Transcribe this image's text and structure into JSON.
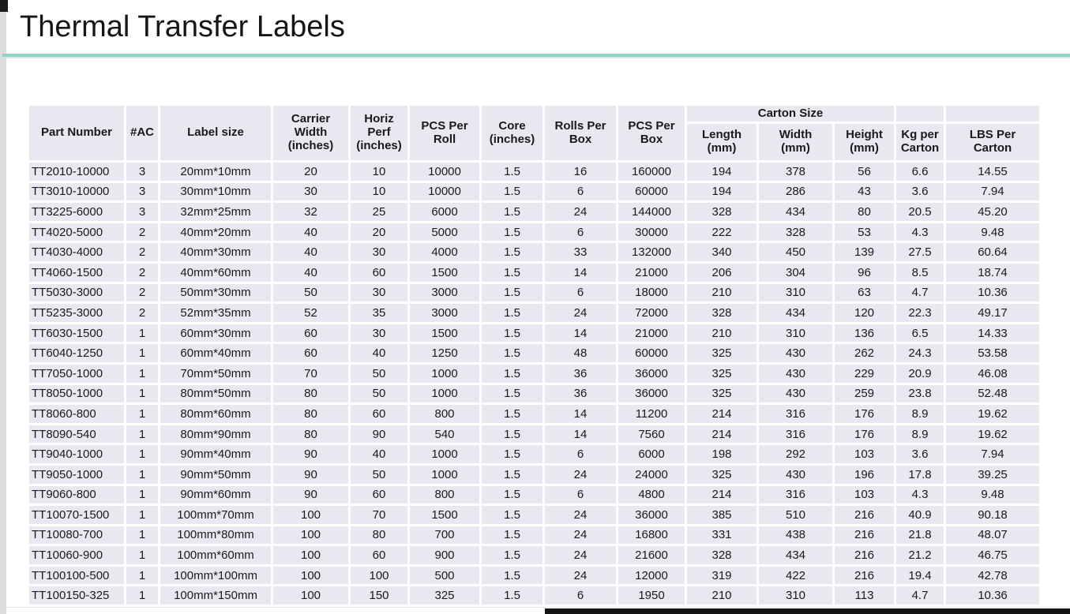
{
  "page": {
    "title": "Thermal Transfer Labels"
  },
  "accent": {
    "divider_color": "#92d1c4",
    "cell_bg": "#e8e8f1",
    "text_color": "#1a1a1a"
  },
  "table": {
    "main_headers": [
      "Part Number",
      "#AC",
      "Label size",
      "Carrier\nWidth\n(inches)",
      "Horiz\nPerf\n(inches)",
      "PCS Per\nRoll",
      "Core\n(inches)",
      "Rolls Per\nBox",
      "PCS Per\nBox"
    ],
    "carton_group_header": "Carton Size",
    "carton_subheaders": [
      "Length\n(mm)",
      "Width\n(mm)",
      "Height\n(mm)"
    ],
    "tail_headers": [
      "Kg per\nCarton",
      "LBS Per\nCarton"
    ],
    "rows": [
      [
        "TT2010-10000",
        "3",
        "20mm*10mm",
        "20",
        "10",
        "10000",
        "1.5",
        "16",
        "160000",
        "194",
        "378",
        "56",
        "6.6",
        "14.55"
      ],
      [
        "TT3010-10000",
        "3",
        "30mm*10mm",
        "30",
        "10",
        "10000",
        "1.5",
        "6",
        "60000",
        "194",
        "286",
        "43",
        "3.6",
        "7.94"
      ],
      [
        "TT3225-6000",
        "3",
        "32mm*25mm",
        "32",
        "25",
        "6000",
        "1.5",
        "24",
        "144000",
        "328",
        "434",
        "80",
        "20.5",
        "45.20"
      ],
      [
        "TT4020-5000",
        "2",
        "40mm*20mm",
        "40",
        "20",
        "5000",
        "1.5",
        "6",
        "30000",
        "222",
        "328",
        "53",
        "4.3",
        "9.48"
      ],
      [
        "TT4030-4000",
        "2",
        "40mm*30mm",
        "40",
        "30",
        "4000",
        "1.5",
        "33",
        "132000",
        "340",
        "450",
        "139",
        "27.5",
        "60.64"
      ],
      [
        "TT4060-1500",
        "2",
        "40mm*60mm",
        "40",
        "60",
        "1500",
        "1.5",
        "14",
        "21000",
        "206",
        "304",
        "96",
        "8.5",
        "18.74"
      ],
      [
        "TT5030-3000",
        "2",
        "50mm*30mm",
        "50",
        "30",
        "3000",
        "1.5",
        "6",
        "18000",
        "210",
        "310",
        "63",
        "4.7",
        "10.36"
      ],
      [
        "TT5235-3000",
        "2",
        "52mm*35mm",
        "52",
        "35",
        "3000",
        "1.5",
        "24",
        "72000",
        "328",
        "434",
        "120",
        "22.3",
        "49.17"
      ],
      [
        "TT6030-1500",
        "1",
        "60mm*30mm",
        "60",
        "30",
        "1500",
        "1.5",
        "14",
        "21000",
        "210",
        "310",
        "136",
        "6.5",
        "14.33"
      ],
      [
        "TT6040-1250",
        "1",
        "60mm*40mm",
        "60",
        "40",
        "1250",
        "1.5",
        "48",
        "60000",
        "325",
        "430",
        "262",
        "24.3",
        "53.58"
      ],
      [
        "TT7050-1000",
        "1",
        "70mm*50mm",
        "70",
        "50",
        "1000",
        "1.5",
        "36",
        "36000",
        "325",
        "430",
        "229",
        "20.9",
        "46.08"
      ],
      [
        "TT8050-1000",
        "1",
        "80mm*50mm",
        "80",
        "50",
        "1000",
        "1.5",
        "36",
        "36000",
        "325",
        "430",
        "259",
        "23.8",
        "52.48"
      ],
      [
        "TT8060-800",
        "1",
        "80mm*60mm",
        "80",
        "60",
        "800",
        "1.5",
        "14",
        "11200",
        "214",
        "316",
        "176",
        "8.9",
        "19.62"
      ],
      [
        "TT8090-540",
        "1",
        "80mm*90mm",
        "80",
        "90",
        "540",
        "1.5",
        "14",
        "7560",
        "214",
        "316",
        "176",
        "8.9",
        "19.62"
      ],
      [
        "TT9040-1000",
        "1",
        "90mm*40mm",
        "90",
        "40",
        "1000",
        "1.5",
        "6",
        "6000",
        "198",
        "292",
        "103",
        "3.6",
        "7.94"
      ],
      [
        "TT9050-1000",
        "1",
        "90mm*50mm",
        "90",
        "50",
        "1000",
        "1.5",
        "24",
        "24000",
        "325",
        "430",
        "196",
        "17.8",
        "39.25"
      ],
      [
        "TT9060-800",
        "1",
        "90mm*60mm",
        "90",
        "60",
        "800",
        "1.5",
        "6",
        "4800",
        "214",
        "316",
        "103",
        "4.3",
        "9.48"
      ],
      [
        "TT10070-1500",
        "1",
        "100mm*70mm",
        "100",
        "70",
        "1500",
        "1.5",
        "24",
        "36000",
        "385",
        "510",
        "216",
        "40.9",
        "90.18"
      ],
      [
        "TT10080-700",
        "1",
        "100mm*80mm",
        "100",
        "80",
        "700",
        "1.5",
        "24",
        "16800",
        "331",
        "438",
        "216",
        "21.8",
        "48.07"
      ],
      [
        "TT10060-900",
        "1",
        "100mm*60mm",
        "100",
        "60",
        "900",
        "1.5",
        "24",
        "21600",
        "328",
        "434",
        "216",
        "21.2",
        "46.75"
      ],
      [
        "TT100100-500",
        "1",
        "100mm*100mm",
        "100",
        "100",
        "500",
        "1.5",
        "24",
        "12000",
        "319",
        "422",
        "216",
        "19.4",
        "42.78"
      ],
      [
        "TT100150-325",
        "1",
        "100mm*150mm",
        "100",
        "150",
        "325",
        "1.5",
        "6",
        "1950",
        "210",
        "310",
        "113",
        "4.7",
        "10.36"
      ]
    ]
  }
}
